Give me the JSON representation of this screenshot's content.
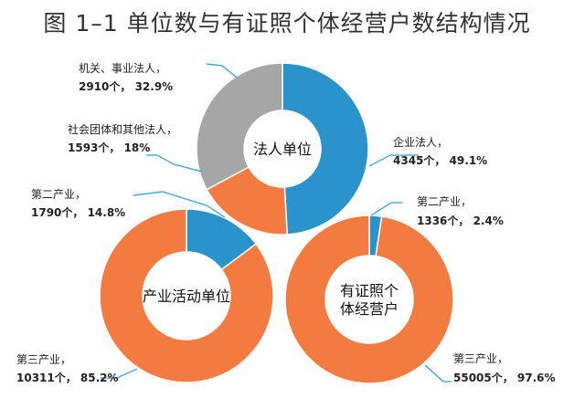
{
  "title": "图 1–1 单位数与有证照个体经营户数结构情况",
  "colors": {
    "blue": "#2B93CB",
    "orange": "#F47B3F",
    "gray": "#A6A6A6",
    "leader": "#2E9BD6"
  },
  "chart_data": [
    {
      "type": "pie",
      "center_label": [
        "法人单位"
      ],
      "slices": [
        {
          "name": "企业法人，",
          "value": 4345,
          "percent": 49.1,
          "label": "4345个， 49.1%",
          "color": "#2B93CB"
        },
        {
          "name": "社会团体和其他法人，",
          "value": 1593,
          "percent": 18,
          "label": "1593个， 18%",
          "color": "#F47B3F"
        },
        {
          "name": "机关、事业法人，",
          "value": 2910,
          "percent": 32.9,
          "label": "2910个， 32.9%",
          "color": "#A6A6A6"
        }
      ]
    },
    {
      "type": "pie",
      "center_label": [
        "产业活动单位"
      ],
      "slices": [
        {
          "name": "第二产业，",
          "value": 1790,
          "percent": 14.8,
          "label": "1790个， 14.8%",
          "color": "#2B93CB"
        },
        {
          "name": "第三产业，",
          "value": 10311,
          "percent": 85.2,
          "label": "10311个， 85.2%",
          "color": "#F47B3F"
        }
      ]
    },
    {
      "type": "pie",
      "center_label": [
        "有证照个",
        "体经营户"
      ],
      "slices": [
        {
          "name": "第二产业，",
          "value": 1336,
          "percent": 2.4,
          "label": "1336个， 2.4%",
          "color": "#2B93CB"
        },
        {
          "name": "第三产业，",
          "value": 55005,
          "percent": 97.6,
          "label": "55005个， 97.6%",
          "color": "#F47B3F"
        }
      ]
    }
  ]
}
